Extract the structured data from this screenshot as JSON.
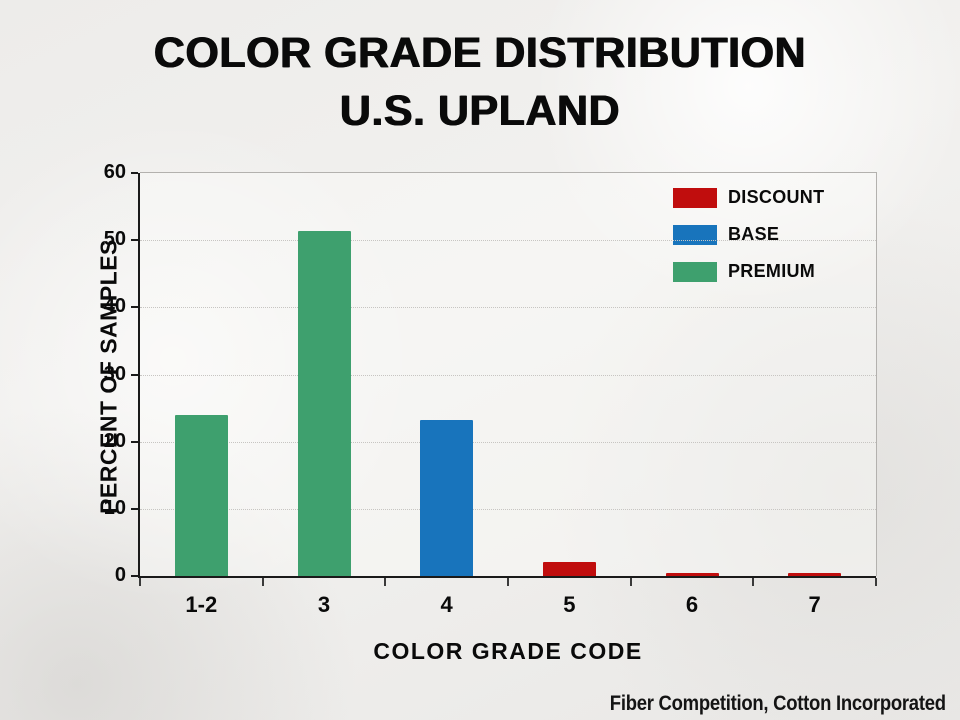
{
  "slide": {
    "title_line1": "COLOR GRADE DISTRIBUTION",
    "title_line2": "U.S. UPLAND",
    "footer": "Fiber Competition, Cotton Incorporated"
  },
  "chart_data": {
    "type": "bar",
    "title": "COLOR GRADE DISTRIBUTION U.S. UPLAND",
    "xlabel": "COLOR GRADE CODE",
    "ylabel": "PERCENT OF SAMPLES",
    "categories": [
      "1-2",
      "3",
      "4",
      "5",
      "6",
      "7"
    ],
    "values": [
      24,
      51.3,
      23.3,
      2.1,
      0.4,
      0.4
    ],
    "bar_series": [
      "PREMIUM",
      "PREMIUM",
      "BASE",
      "DISCOUNT",
      "DISCOUNT",
      "DISCOUNT"
    ],
    "ylim": [
      0,
      60
    ],
    "yticks": [
      0,
      10,
      20,
      30,
      40,
      50,
      60
    ],
    "grid": "horizontal dotted",
    "legend": {
      "position": "top-right inside plot",
      "entries": [
        {
          "label": "DISCOUNT",
          "color": "#C00D0D"
        },
        {
          "label": "BASE",
          "color": "#1874BC"
        },
        {
          "label": "PREMIUM",
          "color": "#3EA06E"
        }
      ]
    }
  }
}
